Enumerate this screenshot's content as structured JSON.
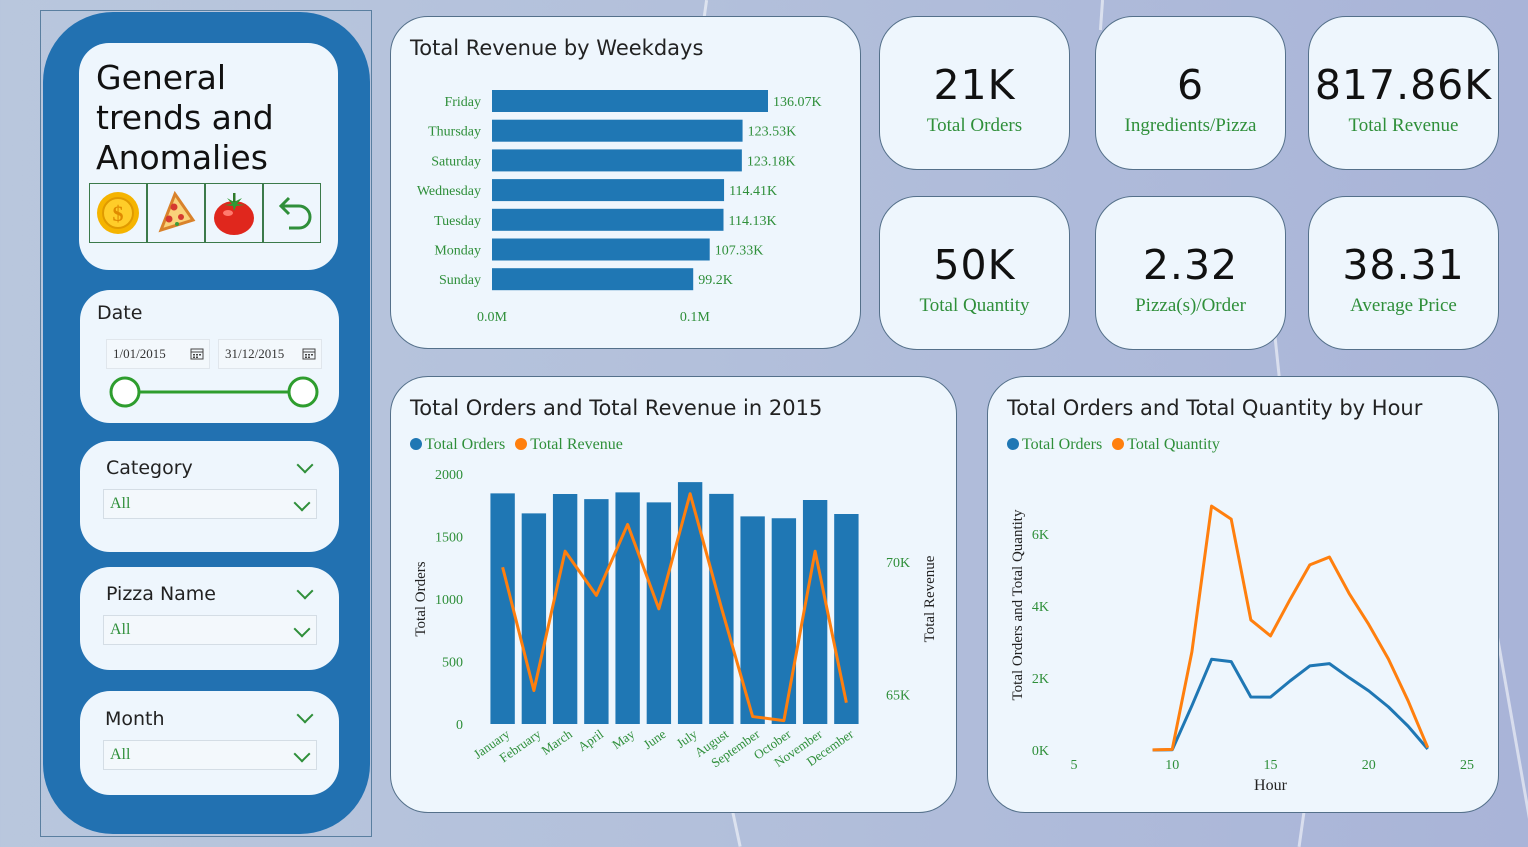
{
  "sidebar": {
    "title_line1": "General",
    "title_line2": "trends and",
    "title_line3": "Anomalies",
    "buttons": [
      "coin-icon",
      "pizza-icon",
      "tomato-icon",
      "back-arrow-icon"
    ],
    "date": {
      "label": "Date",
      "start": "1/01/2015",
      "end": "31/12/2015"
    },
    "category": {
      "label": "Category",
      "value": "All"
    },
    "pizza_name": {
      "label": "Pizza Name",
      "value": "All"
    },
    "month": {
      "label": "Month",
      "value": "All"
    }
  },
  "kpis": [
    {
      "value": "21K",
      "label": "Total Orders"
    },
    {
      "value": "6",
      "label": "Ingredients/Pizza"
    },
    {
      "value": "817.86K",
      "label": "Total Revenue"
    },
    {
      "value": "50K",
      "label": "Total Quantity"
    },
    {
      "value": "2.32",
      "label": "Pizza(s)/Order"
    },
    {
      "value": "38.31",
      "label": "Average Price"
    }
  ],
  "colors": {
    "blue": "#1f77b4",
    "orange": "#ff7f0e",
    "green_text": "#2f8f3a",
    "sidebar": "#2271b1"
  },
  "chart_data": [
    {
      "type": "bar",
      "orientation": "horizontal",
      "title": "Total Revenue by Weekdays",
      "categories": [
        "Friday",
        "Thursday",
        "Saturday",
        "Wednesday",
        "Tuesday",
        "Monday",
        "Sunday"
      ],
      "values": [
        136070,
        123530,
        123180,
        114410,
        114130,
        107330,
        99200
      ],
      "data_labels": [
        "136.07K",
        "123.53K",
        "123.18K",
        "114.41K",
        "114.13K",
        "107.33K",
        "99.2K"
      ],
      "x_ticks": [
        "0.0M",
        "0.1M"
      ],
      "xlim": [
        0,
        155000
      ]
    },
    {
      "type": "bar",
      "title": "Total Orders and Total Revenue in 2015",
      "categories": [
        "January",
        "February",
        "March",
        "April",
        "May",
        "June",
        "July",
        "August",
        "September",
        "October",
        "November",
        "December"
      ],
      "series": [
        {
          "name": "Total Orders",
          "type": "bar",
          "values": [
            1845,
            1685,
            1840,
            1799,
            1853,
            1773,
            1935,
            1841,
            1661,
            1646,
            1792,
            1680
          ]
        },
        {
          "name": "Total Revenue",
          "type": "line",
          "axis": "right",
          "values": [
            69793,
            65160,
            70397,
            68737,
            71403,
            68230,
            72558,
            68278,
            64180,
            64028,
            70395,
            64701
          ]
        }
      ],
      "ylabel": "Total Orders",
      "ylabel_right": "Total Revenue",
      "y_ticks": [
        "0",
        "500",
        "1000",
        "1500",
        "2000"
      ],
      "y_right_ticks": [
        "65K",
        "70K"
      ],
      "ylim": [
        0,
        2000
      ],
      "ylim_right": [
        63900,
        73300
      ],
      "legend": "top-left"
    },
    {
      "type": "line",
      "title": "Total Orders and Total Quantity by Hour",
      "x": [
        9,
        10,
        11,
        12,
        13,
        14,
        15,
        16,
        17,
        18,
        19,
        20,
        21,
        22,
        23
      ],
      "series": [
        {
          "name": "Total Orders",
          "values": [
            1,
            8,
            1231,
            2520,
            2455,
            1472,
            1468,
            1920,
            2336,
            2399,
            2009,
            1642,
            1198,
            663,
            28
          ]
        },
        {
          "name": "Total Quantity",
          "values": [
            4,
            18,
            2728,
            6776,
            6413,
            3613,
            3170,
            4185,
            5143,
            5359,
            4350,
            3487,
            2528,
            1370,
            68
          ]
        }
      ],
      "xlabel": "Hour",
      "ylabel": "Total Orders and Total Quantity",
      "x_ticks": [
        "5",
        "10",
        "15",
        "20",
        "25"
      ],
      "y_ticks": [
        "0K",
        "2K",
        "4K",
        "6K"
      ],
      "xlim": [
        5,
        25
      ],
      "ylim": [
        0,
        7500
      ],
      "legend": "top-left"
    }
  ]
}
